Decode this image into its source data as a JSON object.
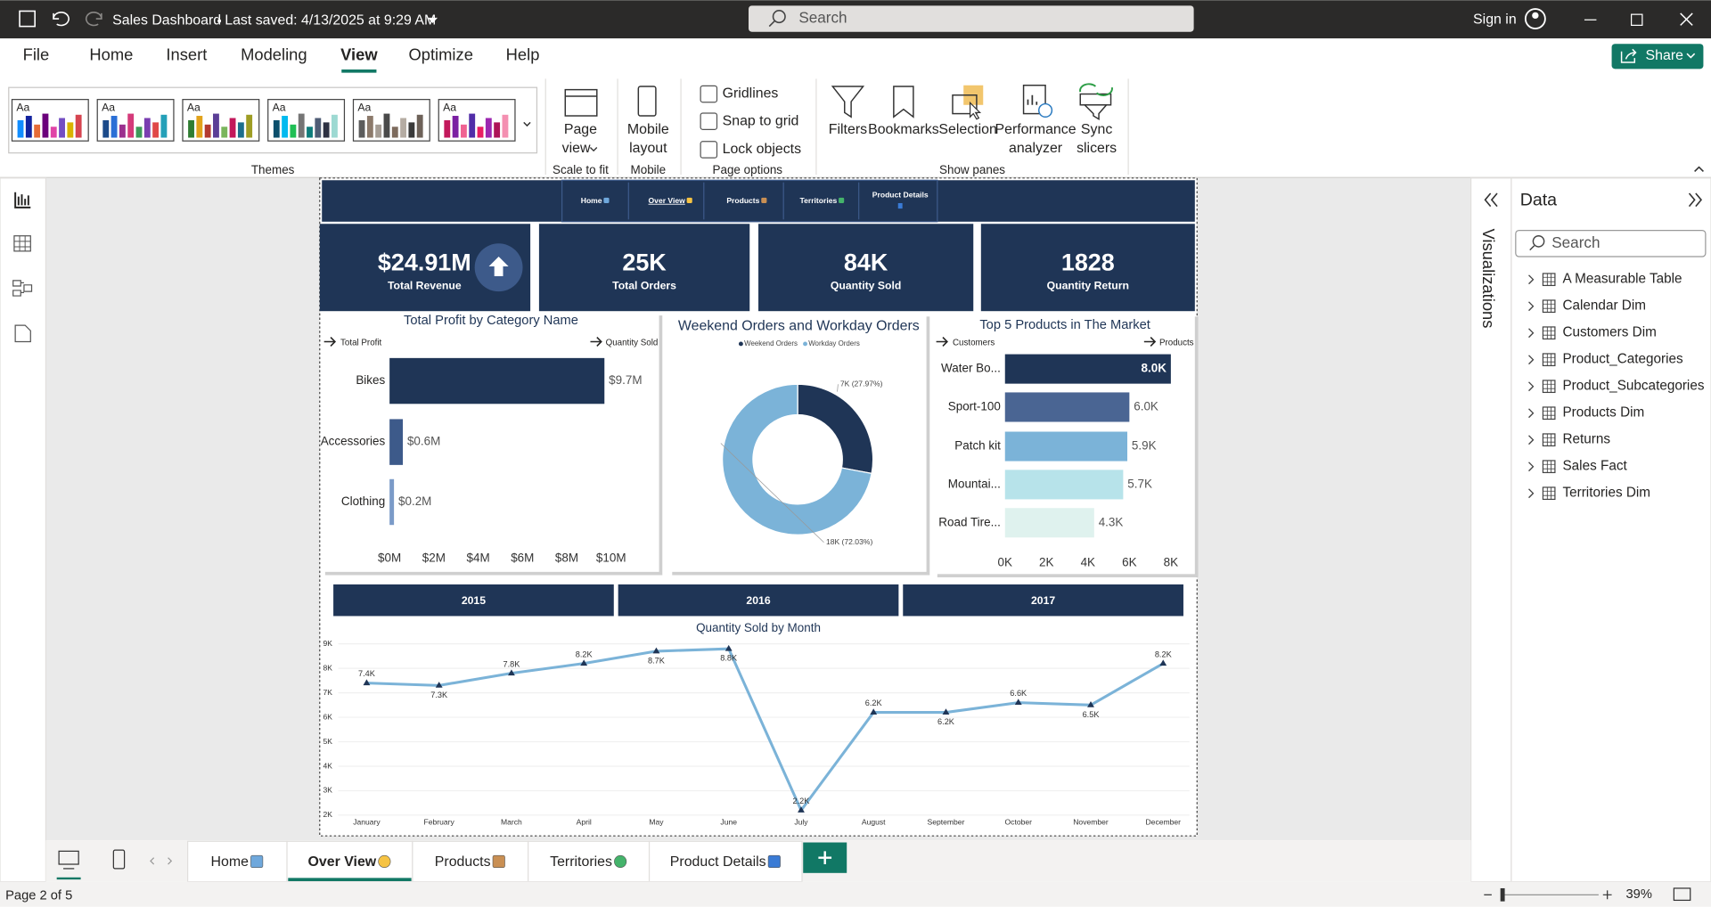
{
  "titlebar": {
    "file_name": "Sales Dashboard",
    "saved": "Last saved: 4/13/2025 at 9:29 AM",
    "search": "Search",
    "sign_in": "Sign in"
  },
  "ribbon": {
    "tabs": [
      "File",
      "Home",
      "Insert",
      "Modeling",
      "View",
      "Optimize",
      "Help"
    ],
    "active_tab": 4,
    "share": "Share",
    "themes": {
      "samples": [
        "Aa",
        "Aa",
        "Aa",
        "Aa",
        "Aa",
        "Aa"
      ],
      "label": "Themes"
    },
    "scale_to_fit": {
      "button": [
        "Page",
        "view"
      ],
      "label": "Scale to fit"
    },
    "mobile": {
      "button": [
        "Mobile",
        "layout"
      ],
      "label": "Mobile"
    },
    "page_options": {
      "checkboxes": [
        "Gridlines",
        "Snap to grid",
        "Lock objects"
      ],
      "label": "Page options"
    },
    "show_panes": {
      "buttons": [
        [
          "Filters"
        ],
        [
          "Bookmarks"
        ],
        [
          "Selection"
        ],
        [
          "Performance",
          "analyzer"
        ],
        [
          "Sync",
          "slicers"
        ]
      ],
      "label": "Show panes"
    }
  },
  "report": {
    "nav": [
      "Home",
      "Over View",
      "Products",
      "Territories",
      "Product Details"
    ],
    "nav_active": 1,
    "kpis": [
      {
        "value": "$24.91M",
        "label": "Total Revenue"
      },
      {
        "value": "25K",
        "label": "Total Orders"
      },
      {
        "value": "84K",
        "label": "Quantity Sold"
      },
      {
        "value": "1828",
        "label": "Quantity Return"
      }
    ],
    "year_slicer": [
      "2015",
      "2016",
      "2017"
    ]
  },
  "chart_data": [
    {
      "type": "bar",
      "orientation": "horizontal",
      "title": "Total Profit by Category Name",
      "drill_from": "Total Profit",
      "drill_to": "Quantity Sold",
      "categories": [
        "Bikes",
        "Accessories",
        "Clothing"
      ],
      "values": [
        9.7,
        0.6,
        0.2
      ],
      "value_labels": [
        "$9.7M",
        "$0.6M",
        "$0.2M"
      ],
      "colors": [
        "#1f3556",
        "#3d5a8a",
        "#7b9bc8"
      ],
      "xlim": [
        0,
        10
      ],
      "xticks": [
        {
          "value": 0,
          "label": "$0M"
        },
        {
          "value": 2,
          "label": "$2M"
        },
        {
          "value": 4,
          "label": "$4M"
        },
        {
          "value": 6,
          "label": "$6M"
        },
        {
          "value": 8,
          "label": "$8M"
        },
        {
          "value": 10,
          "label": "$10M"
        }
      ]
    },
    {
      "type": "donut",
      "title": "Weekend Orders and Workday Orders",
      "categories": [
        "Weekend Orders",
        "Workday Orders"
      ],
      "values": [
        27.97,
        72.03
      ],
      "value_labels": [
        "7K (27.97%)",
        "18K (72.03%)"
      ],
      "colors": [
        "#1f3556",
        "#7bb3d8"
      ]
    },
    {
      "type": "bar",
      "orientation": "horizontal",
      "title": "Top 5 Products in The Market",
      "drill_from": "Customers",
      "drill_to": "Products",
      "categories": [
        "Water Bo...",
        "Sport-100",
        "Patch kit",
        "Mountai...",
        "Road Tire..."
      ],
      "values": [
        8.0,
        6.0,
        5.9,
        5.7,
        4.3
      ],
      "value_labels": [
        "8.0K",
        "6.0K",
        "5.9K",
        "5.7K",
        "4.3K"
      ],
      "colors": [
        "#1f3556",
        "#4a6593",
        "#7bb3d8",
        "#b7e3ea",
        "#dff2ee"
      ],
      "xlim": [
        0,
        8
      ],
      "xticks": [
        {
          "value": 0,
          "label": "0K"
        },
        {
          "value": 2,
          "label": "2K"
        },
        {
          "value": 4,
          "label": "4K"
        },
        {
          "value": 6,
          "label": "6K"
        },
        {
          "value": 8,
          "label": "8K"
        }
      ]
    },
    {
      "type": "line",
      "title": "Quantity Sold by Month",
      "categories": [
        "January",
        "February",
        "March",
        "April",
        "May",
        "June",
        "July",
        "August",
        "September",
        "October",
        "November",
        "December"
      ],
      "values": [
        7.4,
        7.3,
        7.8,
        8.2,
        8.7,
        8.8,
        2.2,
        6.2,
        6.2,
        6.6,
        6.5,
        8.2
      ],
      "value_labels": [
        "7.4K",
        "7.3K",
        "7.8K",
        "8.2K",
        "8.7K",
        "8.8K",
        "2.2K",
        "6.2K",
        "6.2K",
        "6.6K",
        "6.5K",
        "8.2K"
      ],
      "color": "#7bb3d8",
      "marker_color": "#1f3556",
      "ylim": [
        2,
        9
      ],
      "yticks": [
        {
          "value": 2,
          "label": "2K"
        },
        {
          "value": 3,
          "label": "3K"
        },
        {
          "value": 4,
          "label": "4K"
        },
        {
          "value": 5,
          "label": "5K"
        },
        {
          "value": 6,
          "label": "6K"
        },
        {
          "value": 7,
          "label": "7K"
        },
        {
          "value": 8,
          "label": "8K"
        },
        {
          "value": 9,
          "label": "9K"
        }
      ],
      "grid": true
    }
  ],
  "data_pane": {
    "visualizations": "Visualizations",
    "title": "Data",
    "search": "Search",
    "tables": [
      "A Measurable Table",
      "Calendar Dim",
      "Customers Dim",
      "Product_Categories",
      "Product_Subcategories",
      "Products Dim",
      "Returns",
      "Sales Fact",
      "Territories Dim"
    ]
  },
  "page_tabs": {
    "tabs": [
      "Home",
      "Over View",
      "Products",
      "Territories",
      "Product Details"
    ],
    "active": 1
  },
  "status": {
    "page": "Page 2 of 5",
    "zoom": "39%"
  }
}
